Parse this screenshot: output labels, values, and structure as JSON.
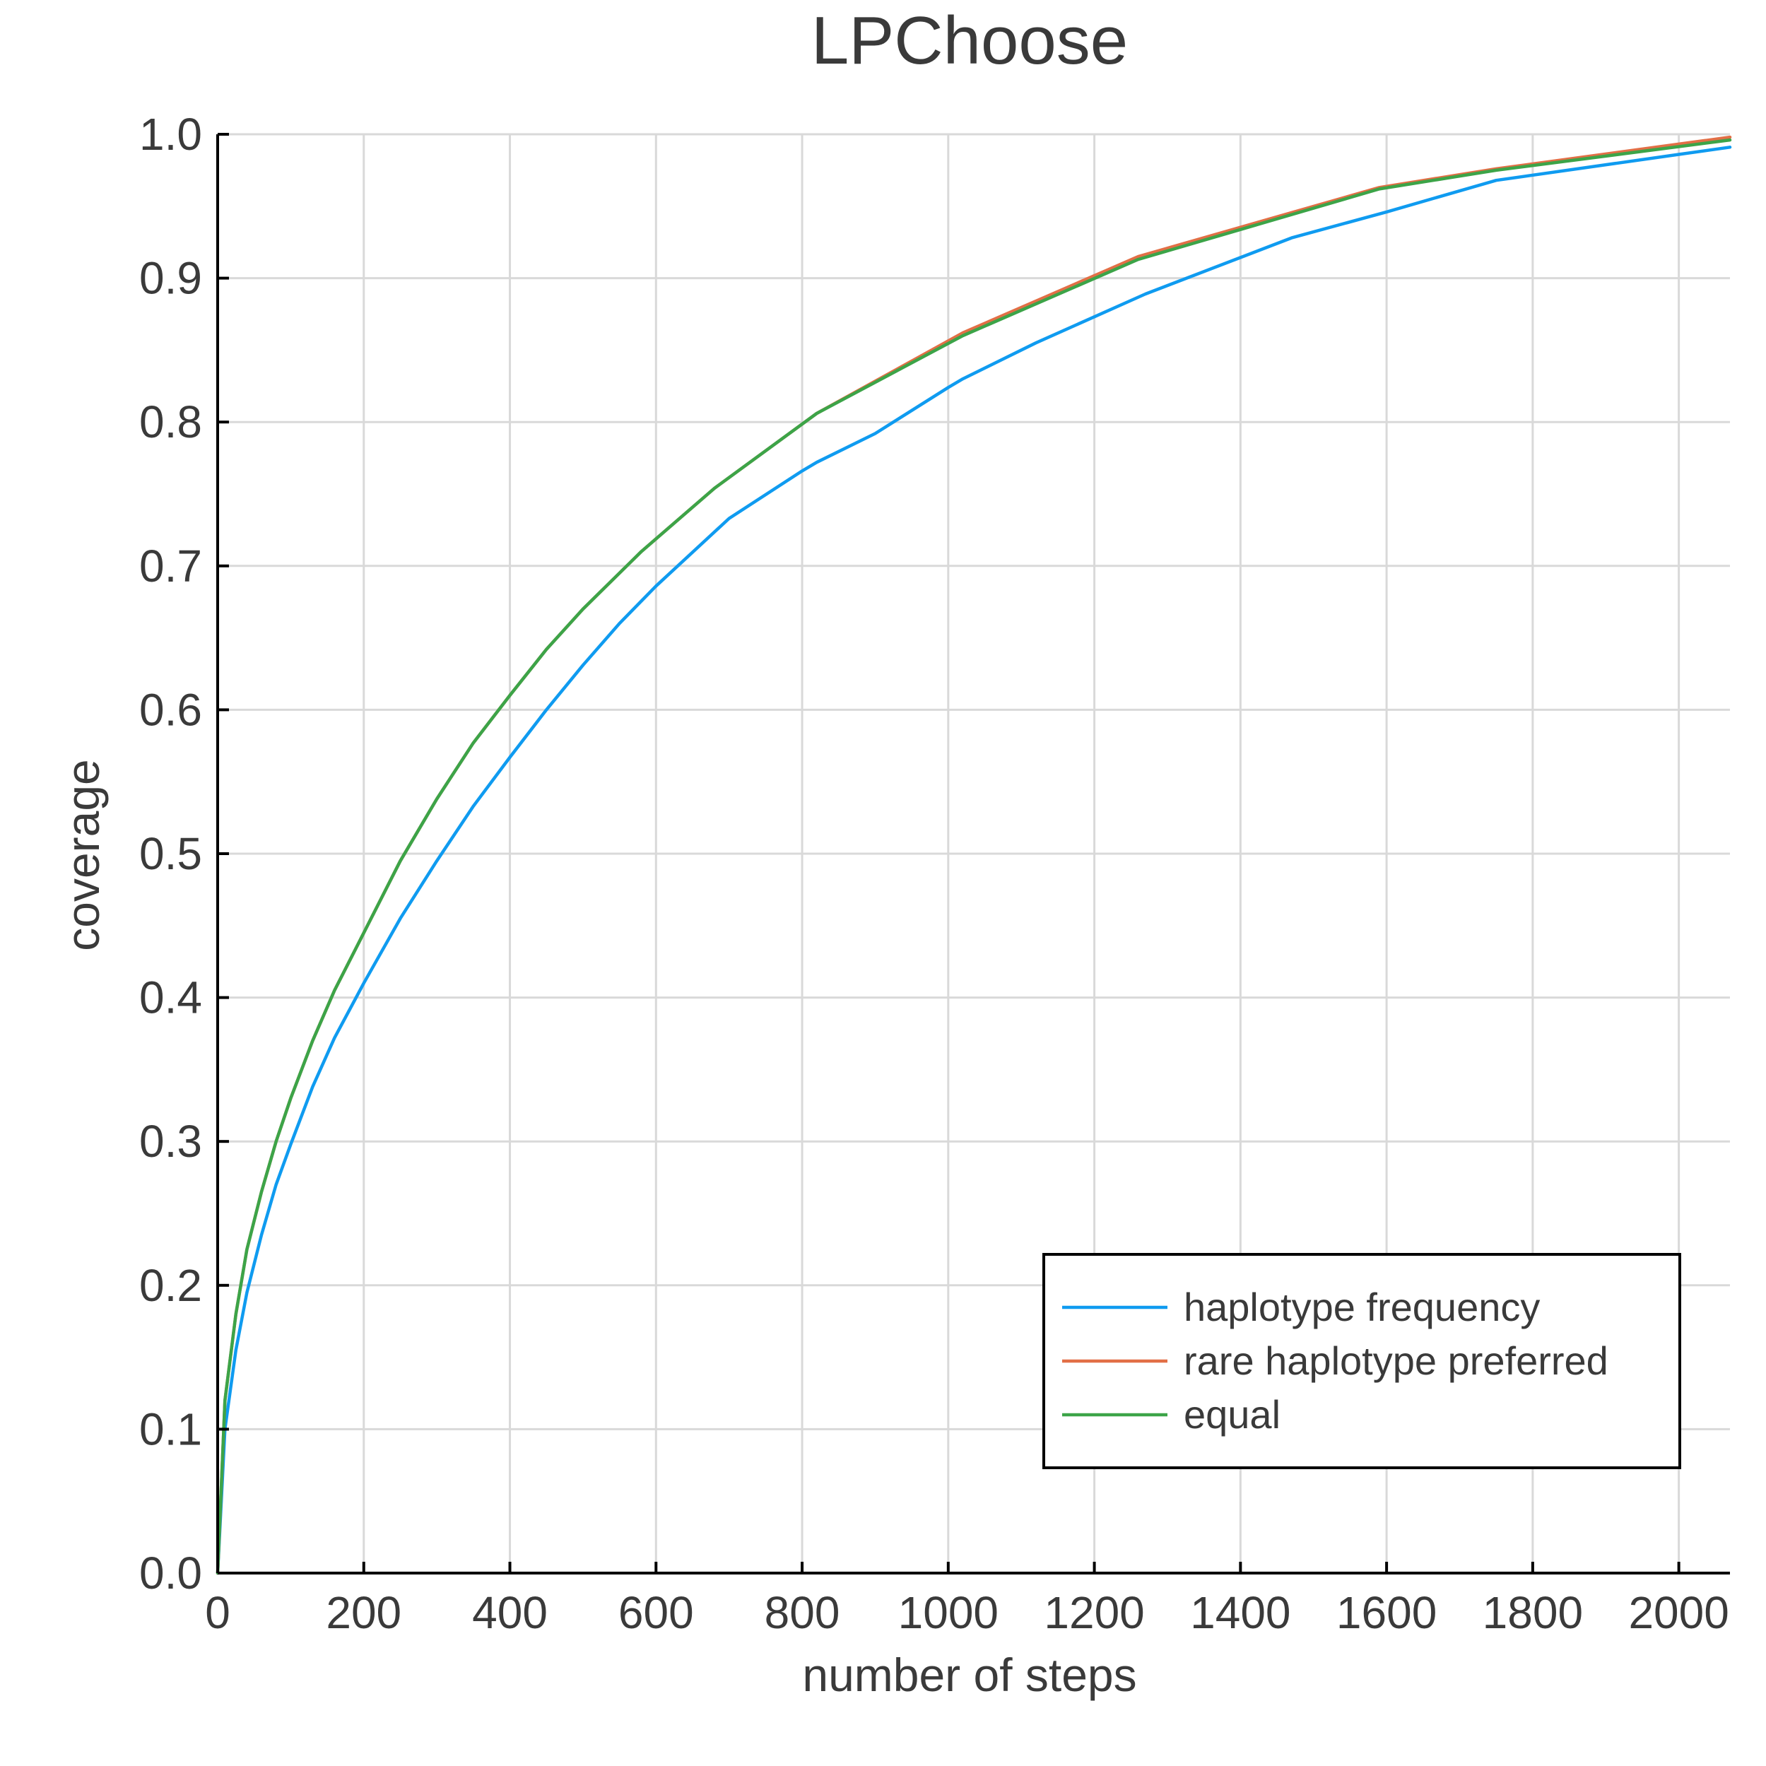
{
  "chart_data": {
    "type": "line",
    "title": "LPChoose",
    "xlabel": "number of steps",
    "ylabel": "coverage",
    "xlim": [
      0,
      2070
    ],
    "ylim": [
      0,
      1.0
    ],
    "xticks": [
      0,
      200,
      400,
      600,
      800,
      1000,
      1200,
      1400,
      1600,
      1800,
      2000
    ],
    "yticks": [
      0.0,
      0.1,
      0.2,
      0.3,
      0.4,
      0.5,
      0.6,
      0.7,
      0.8,
      0.9,
      1.0
    ],
    "xtick_labels": [
      "0",
      "200",
      "400",
      "600",
      "800",
      "1000",
      "1200",
      "1400",
      "1600",
      "1800",
      "2000"
    ],
    "ytick_labels": [
      "0.0",
      "0.1",
      "0.2",
      "0.3",
      "0.4",
      "0.5",
      "0.6",
      "0.7",
      "0.8",
      "0.9",
      "1.0"
    ],
    "grid": true,
    "legend_position": "bottom-right",
    "series": [
      {
        "name": "haplotype frequency",
        "color": "#0f9bf0",
        "x": [
          0,
          10,
          25,
          40,
          60,
          80,
          100,
          130,
          160,
          200,
          250,
          300,
          350,
          400,
          450,
          500,
          550,
          600,
          700,
          800,
          820,
          900,
          1000,
          1020,
          1120,
          1270,
          1470,
          1600,
          1750,
          2000,
          2070
        ],
        "y": [
          0.0,
          0.1,
          0.155,
          0.195,
          0.235,
          0.27,
          0.298,
          0.338,
          0.372,
          0.41,
          0.455,
          0.495,
          0.533,
          0.567,
          0.6,
          0.631,
          0.66,
          0.686,
          0.733,
          0.766,
          0.772,
          0.792,
          0.824,
          0.83,
          0.855,
          0.889,
          0.928,
          0.946,
          0.968,
          0.986,
          0.991
        ]
      },
      {
        "name": "rare haplotype preferred",
        "color": "#e26f46",
        "x": [
          0,
          10,
          25,
          40,
          60,
          80,
          100,
          130,
          160,
          200,
          250,
          300,
          350,
          400,
          450,
          500,
          580,
          680,
          820,
          1020,
          1260,
          1590,
          1750,
          2070
        ],
        "y": [
          0.0,
          0.12,
          0.18,
          0.225,
          0.265,
          0.3,
          0.33,
          0.37,
          0.405,
          0.445,
          0.495,
          0.538,
          0.577,
          0.61,
          0.642,
          0.67,
          0.71,
          0.754,
          0.806,
          0.862,
          0.915,
          0.963,
          0.976,
          0.998
        ]
      },
      {
        "name": "equal",
        "color": "#3ca448",
        "x": [
          0,
          10,
          25,
          40,
          60,
          80,
          100,
          130,
          160,
          200,
          250,
          300,
          350,
          400,
          450,
          500,
          580,
          680,
          820,
          1020,
          1260,
          1590,
          1750,
          2070
        ],
        "y": [
          0.0,
          0.12,
          0.18,
          0.225,
          0.265,
          0.3,
          0.33,
          0.37,
          0.405,
          0.445,
          0.495,
          0.538,
          0.577,
          0.61,
          0.642,
          0.67,
          0.71,
          0.754,
          0.806,
          0.86,
          0.913,
          0.962,
          0.975,
          0.996
        ]
      }
    ]
  }
}
